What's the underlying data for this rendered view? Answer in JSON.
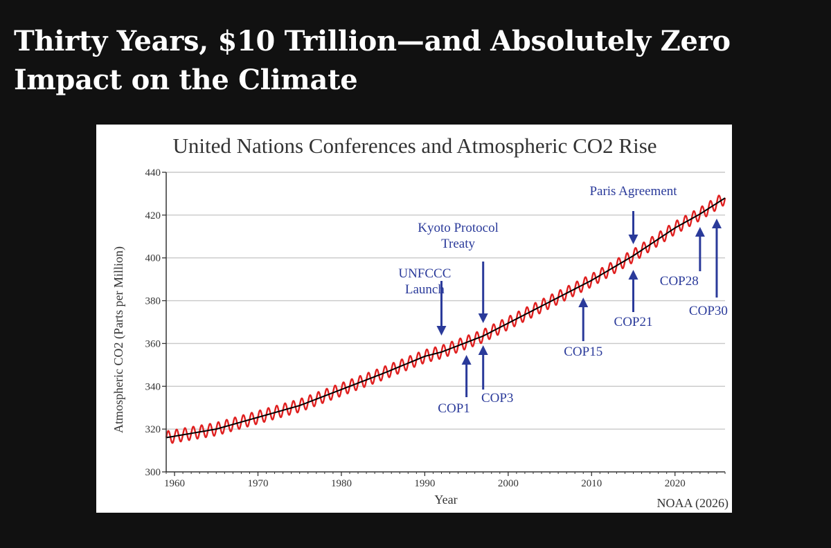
{
  "headline": "Thirty Years, $10 Trillion—and Absolutely Zero Impact on the Climate",
  "source_note": "NOAA (2026)",
  "chart_data": {
    "type": "line",
    "title": "United Nations Conferences and Atmospheric CO2 Rise",
    "xlabel": "Year",
    "ylabel": "Atmospheric CO2 (Parts per Million)",
    "xlim": [
      1959,
      2026
    ],
    "ylim": [
      300,
      440
    ],
    "x_ticks": [
      1960,
      1970,
      1980,
      1990,
      2000,
      2010,
      2020
    ],
    "y_ticks": [
      300,
      320,
      340,
      360,
      380,
      400,
      420,
      440
    ],
    "grid": true,
    "series": [
      {
        "color": "#e02020",
        "seasonal_amplitude": 3,
        "x": [
          1959,
          1965,
          1970,
          1975,
          1980,
          1985,
          1990,
          1992,
          1995,
          1997,
          2000,
          2005,
          2009,
          2010,
          2015,
          2020,
          2023,
          2025,
          2026
        ],
        "y": [
          316,
          320,
          325.5,
          331,
          338.5,
          346,
          354,
          356,
          360.5,
          363.5,
          369.5,
          379.5,
          387.5,
          389.5,
          401,
          414,
          420.5,
          425.5,
          428
        ]
      },
      {
        "color": "#000000",
        "x": [
          1959,
          1965,
          1970,
          1975,
          1980,
          1985,
          1990,
          1992,
          1995,
          1997,
          2000,
          2005,
          2009,
          2010,
          2015,
          2020,
          2023,
          2025,
          2026
        ],
        "y": [
          316,
          320,
          325.5,
          331,
          338.5,
          346,
          354,
          356,
          360.5,
          363.5,
          369.5,
          379.5,
          387.5,
          389.5,
          401,
          414,
          420.5,
          425.5,
          428
        ]
      }
    ],
    "annotations": [
      {
        "lines": [
          "UNFCCC",
          "Launch"
        ],
        "x": 1992,
        "direction": "down"
      },
      {
        "lines": [
          "Kyoto Protocol",
          "Treaty"
        ],
        "x": 1997,
        "direction": "down"
      },
      {
        "lines": [
          "Paris Agreement"
        ],
        "x": 2015,
        "direction": "down"
      },
      {
        "lines": [
          "COP1"
        ],
        "x": 1995,
        "direction": "up"
      },
      {
        "lines": [
          "COP3"
        ],
        "x": 1997,
        "direction": "up"
      },
      {
        "lines": [
          "COP15"
        ],
        "x": 2009,
        "direction": "up"
      },
      {
        "lines": [
          "COP21"
        ],
        "x": 2015,
        "direction": "up"
      },
      {
        "lines": [
          "COP28"
        ],
        "x": 2023,
        "direction": "up"
      },
      {
        "lines": [
          "COP30"
        ],
        "x": 2025,
        "direction": "up"
      }
    ]
  }
}
